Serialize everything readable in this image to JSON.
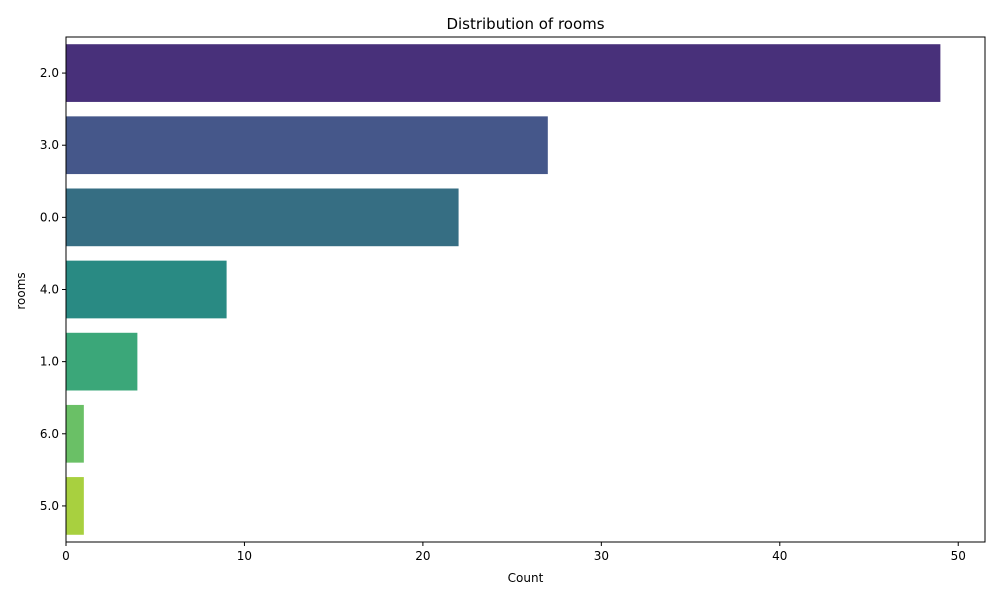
{
  "chart_data": {
    "type": "bar",
    "orientation": "horizontal",
    "title": "Distribution of rooms",
    "xlabel": "Count",
    "ylabel": "rooms",
    "categories": [
      "2.0",
      "3.0",
      "0.0",
      "4.0",
      "1.0",
      "6.0",
      "5.0"
    ],
    "values": [
      49,
      27,
      22,
      9,
      4,
      1,
      1
    ],
    "xlim": [
      0,
      51.5
    ],
    "xticks": [
      0,
      10,
      20,
      30,
      40,
      50
    ],
    "colors": [
      "#48307a",
      "#45578a",
      "#366e83",
      "#298a83",
      "#3ba779",
      "#6ac066",
      "#a8d03f"
    ],
    "grid": false,
    "legend": "none"
  }
}
